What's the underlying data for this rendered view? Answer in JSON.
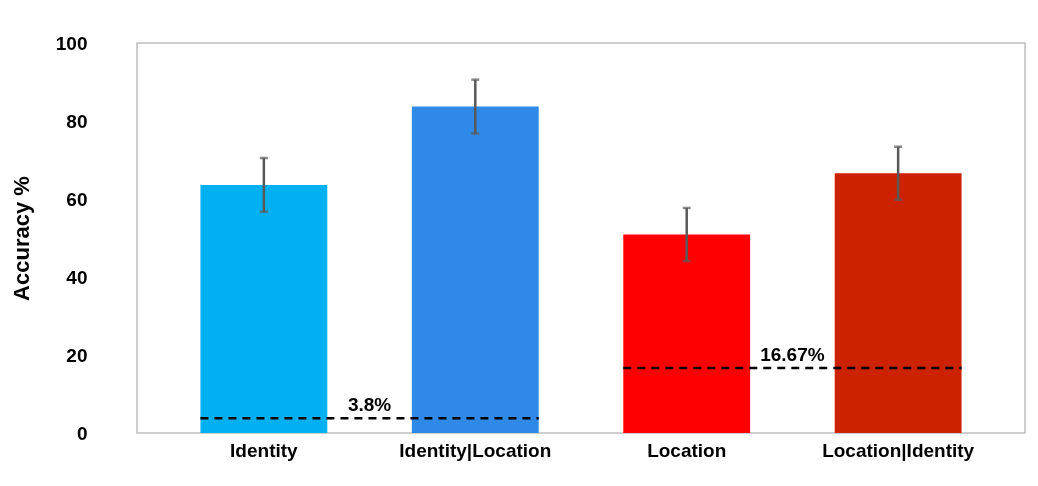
{
  "chart_data": {
    "type": "bar",
    "ylabel": "Accuracy %",
    "categories": [
      "Identity",
      "Identity|Location",
      "Location",
      "Location|Identity"
    ],
    "values": [
      63.6,
      83.7,
      50.9,
      66.6
    ],
    "errors": [
      6.9,
      6.9,
      6.8,
      6.8
    ],
    "colors": [
      "#00b0f0",
      "#2e8ae6",
      "#ff0000",
      "#cc2200"
    ],
    "ylim": [
      0,
      100
    ],
    "yticks": [
      0,
      20,
      40,
      60,
      80,
      100
    ],
    "grid": false,
    "ref_lines": [
      {
        "axis": "y",
        "value": 3.8,
        "label": "3.8%",
        "color": "#000000",
        "line_style": "dashed"
      },
      {
        "axis": "y",
        "value": 16.67,
        "label": "16.67%",
        "color": "#000000",
        "line_style": "dashed"
      }
    ]
  }
}
